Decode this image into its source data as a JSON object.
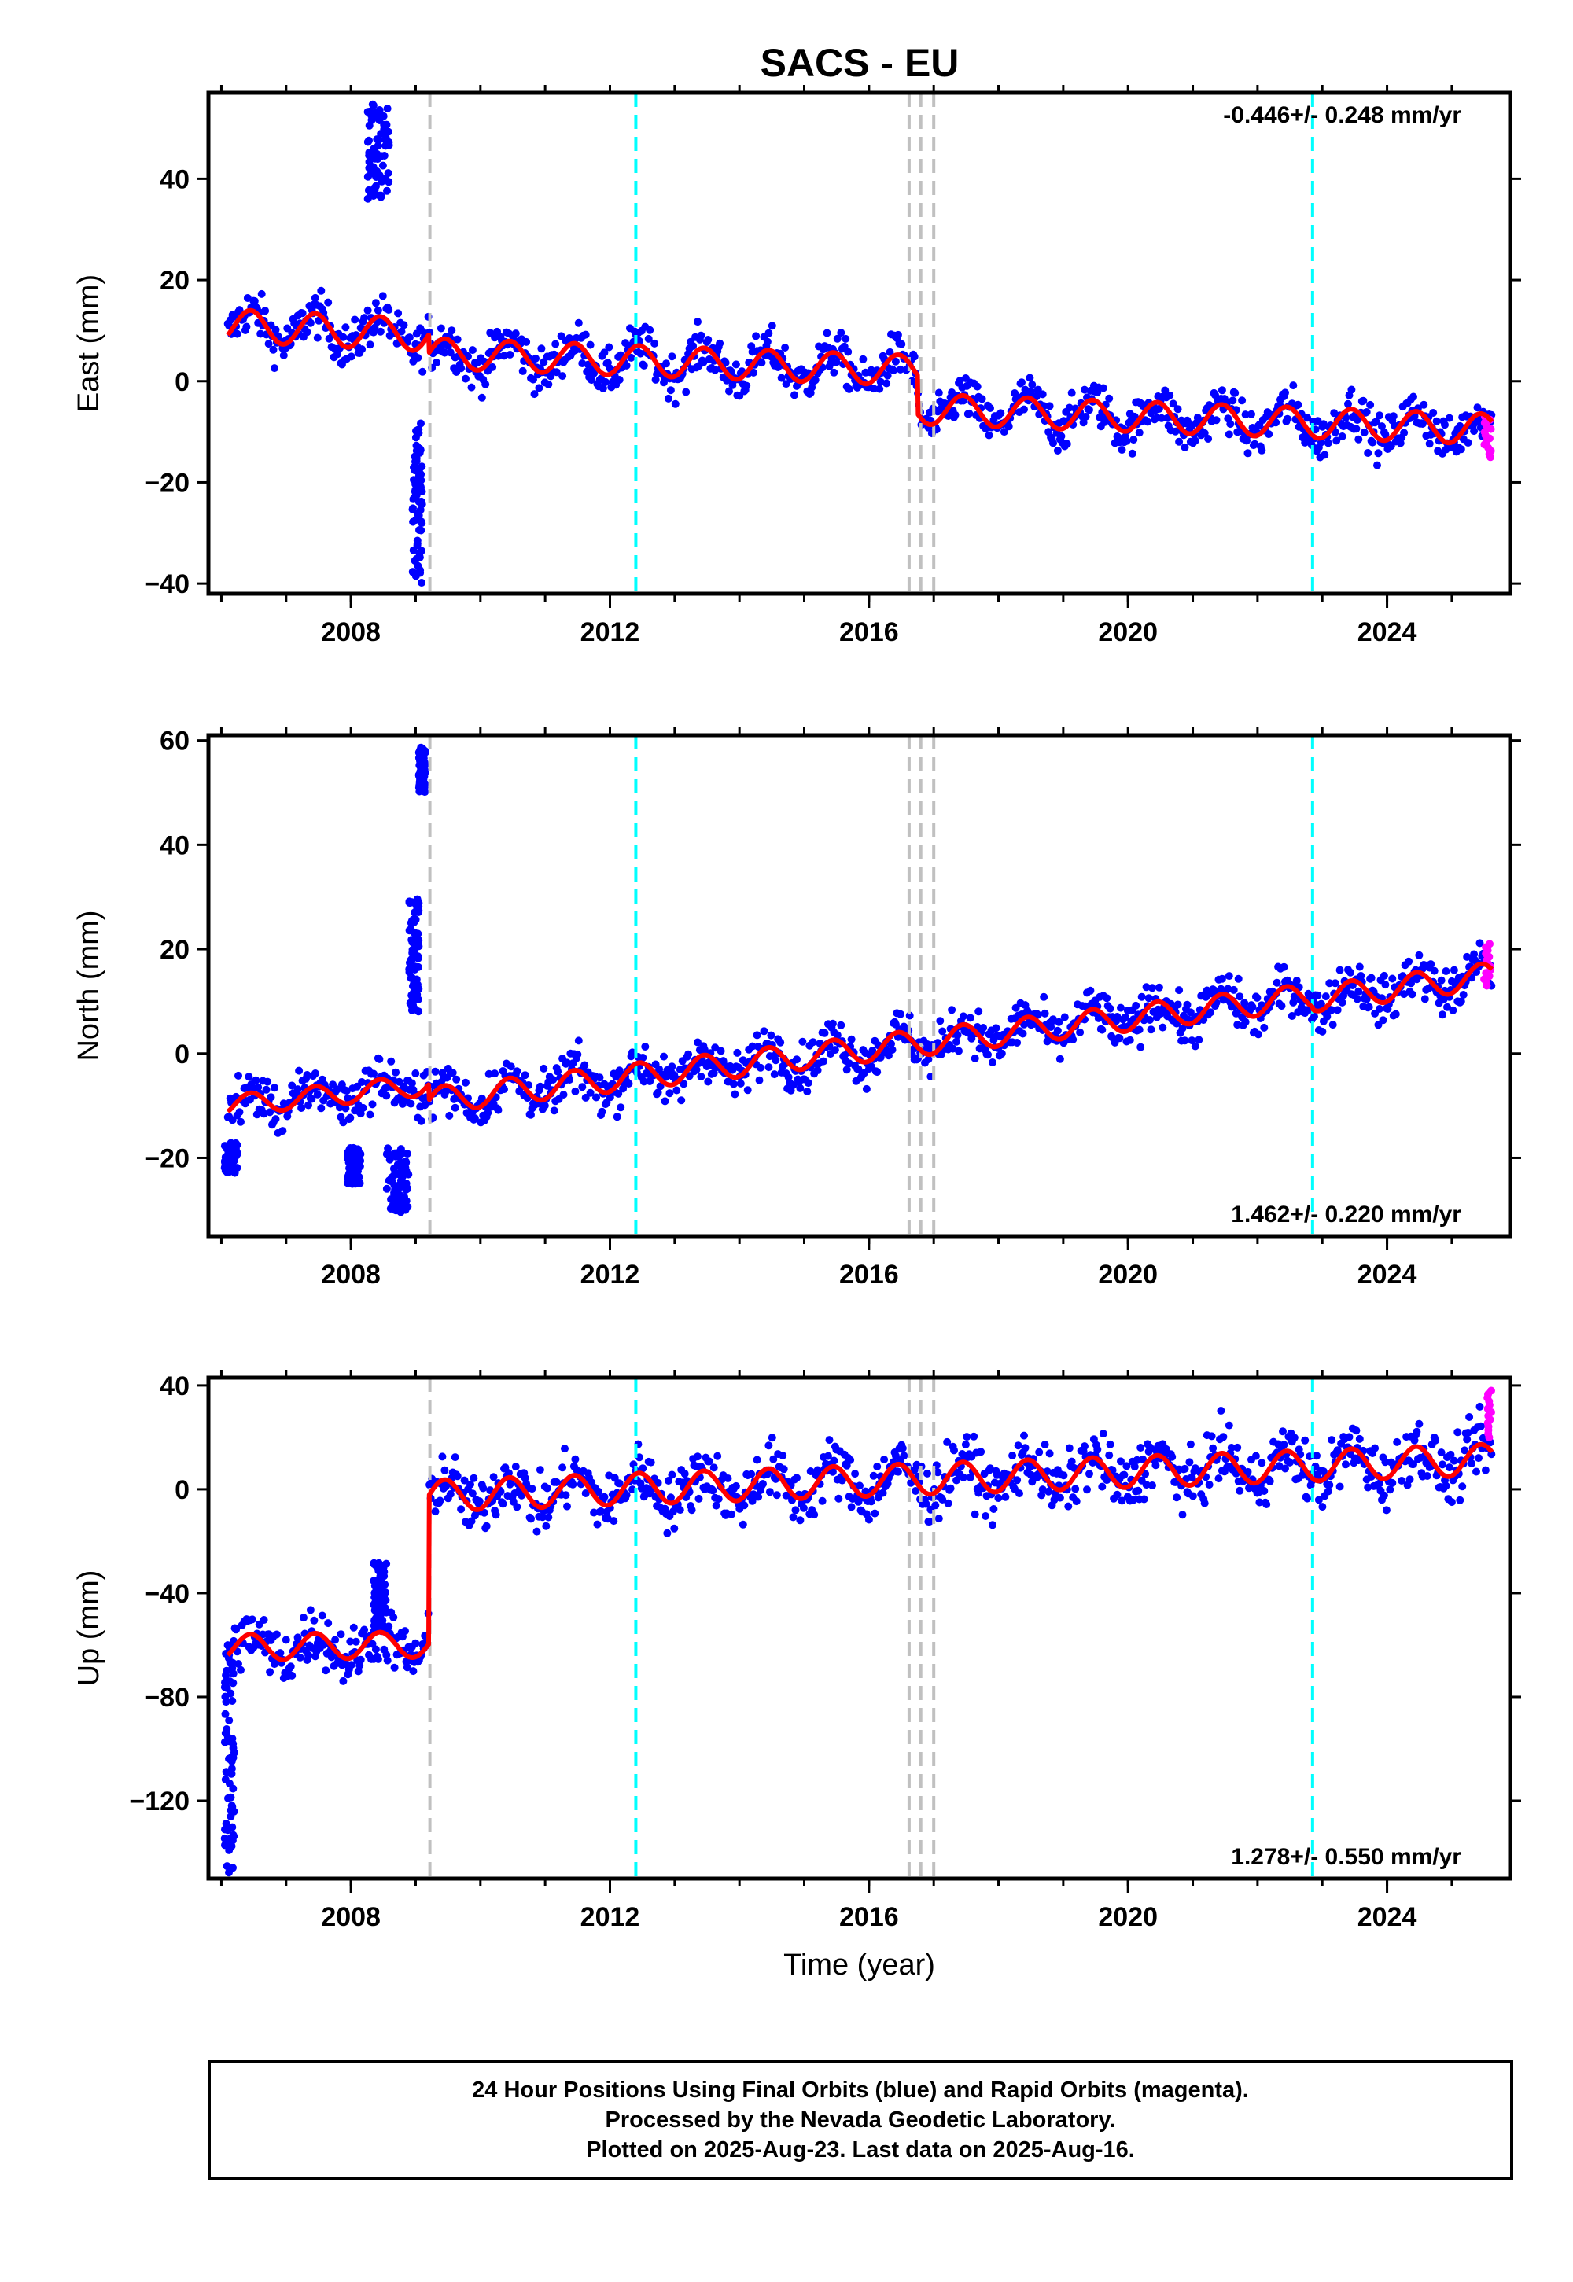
{
  "figure": {
    "title": "SACS - EU"
  },
  "colors": {
    "final_points": "#0000ff",
    "rapid_points": "#ff00ff",
    "model_line": "#ff0000",
    "equipment_change": "#c0c0c0",
    "earthquake": "#00ffff"
  },
  "chart_data": [
    {
      "type": "scatter",
      "panel": "east",
      "title": "SACS - EU",
      "xlabel": "",
      "ylabel": "East (mm)",
      "xlim": [
        2005.8,
        2025.9
      ],
      "ylim": [
        -42,
        57
      ],
      "xticks": [
        2008,
        2012,
        2016,
        2020,
        2024
      ],
      "xtick_labels": [
        "2008",
        "2012",
        "2016",
        "2020",
        "2024"
      ],
      "yticks": [
        -40,
        -20,
        0,
        20,
        40
      ],
      "ytick_labels": [
        "−40",
        "−20",
        "0",
        "20",
        "40"
      ],
      "rate_text": "-0.446+/- 0.248 mm/yr",
      "rate_position": "top-right",
      "rate_mm_per_yr": -0.446,
      "rate_sigma": 0.248,
      "grid": false,
      "series": [
        {
          "name": "Final Orbits",
          "kind": "points",
          "color": "blue"
        },
        {
          "name": "Rapid Orbits",
          "kind": "points",
          "color": "magenta"
        },
        {
          "name": "Model",
          "kind": "line",
          "color": "red"
        }
      ],
      "model_segments": [
        {
          "from": 2006.1,
          "to": 2009.2,
          "offset": 11.0,
          "rate": -0.6,
          "amplitude": 3.2
        },
        {
          "from": 2009.2,
          "to": 2016.75,
          "offset": 5.5,
          "rate": -0.45,
          "amplitude": 3.0
        },
        {
          "from": 2016.75,
          "to": 2025.62,
          "offset": -5.5,
          "rate": -0.45,
          "amplitude": 3.0
        }
      ],
      "outlier_clusters": [
        {
          "x_range": [
            2008.25,
            2008.6
          ],
          "y_range": [
            36,
            55
          ]
        },
        {
          "x_range": [
            2008.95,
            2009.1
          ],
          "y_range": [
            -40,
            -8
          ]
        }
      ],
      "rapid_points": {
        "x_range": [
          2025.5,
          2025.62
        ],
        "y_range": [
          -15,
          -7
        ]
      },
      "vlines_equipment": [
        2009.22,
        2016.62,
        2016.8,
        2017.0
      ],
      "vlines_earthquake": [
        2012.4,
        2022.85
      ]
    },
    {
      "type": "scatter",
      "panel": "north",
      "xlabel": "",
      "ylabel": "North (mm)",
      "xlim": [
        2005.8,
        2025.9
      ],
      "ylim": [
        -35,
        61
      ],
      "xticks": [
        2008,
        2012,
        2016,
        2020,
        2024
      ],
      "xtick_labels": [
        "2008",
        "2012",
        "2016",
        "2020",
        "2024"
      ],
      "yticks": [
        -20,
        0,
        20,
        40,
        60
      ],
      "ytick_labels": [
        "−20",
        "0",
        "20",
        "40",
        "60"
      ],
      "rate_text": "1.462+/- 0.220 mm/yr",
      "rate_position": "bottom-right",
      "rate_mm_per_yr": 1.462,
      "rate_sigma": 0.22,
      "grid": false,
      "series": [
        {
          "name": "Final Orbits",
          "kind": "points",
          "color": "blue"
        },
        {
          "name": "Rapid Orbits",
          "kind": "points",
          "color": "magenta"
        },
        {
          "name": "Model",
          "kind": "line",
          "color": "red"
        }
      ],
      "model_segments": [
        {
          "from": 2006.1,
          "to": 2009.2,
          "offset": -10.0,
          "rate": 1.3,
          "amplitude": 2.0
        },
        {
          "from": 2009.2,
          "to": 2022.85,
          "offset": -9.0,
          "rate": 1.46,
          "amplitude": 2.5
        },
        {
          "from": 2022.85,
          "to": 2025.62,
          "offset": 10.5,
          "rate": 1.6,
          "amplitude": 2.5
        }
      ],
      "outlier_clusters": [
        {
          "x_range": [
            2006.05,
            2006.25
          ],
          "y_range": [
            -23,
            -17
          ]
        },
        {
          "x_range": [
            2007.95,
            2008.15
          ],
          "y_range": [
            -25,
            -18
          ]
        },
        {
          "x_range": [
            2008.55,
            2008.9
          ],
          "y_range": [
            -31,
            -18
          ]
        },
        {
          "x_range": [
            2008.9,
            2009.05
          ],
          "y_range": [
            8,
            31
          ]
        },
        {
          "x_range": [
            2009.05,
            2009.15
          ],
          "y_range": [
            50,
            59
          ]
        }
      ],
      "rapid_points": {
        "x_range": [
          2025.5,
          2025.62
        ],
        "y_range": [
          13,
          21
        ]
      },
      "vlines_equipment": [
        2009.22,
        2016.62,
        2016.8,
        2017.0
      ],
      "vlines_earthquake": [
        2012.4,
        2022.85
      ]
    },
    {
      "type": "scatter",
      "panel": "up",
      "xlabel": "Time (year)",
      "ylabel": "Up (mm)",
      "xlim": [
        2005.8,
        2025.9
      ],
      "ylim": [
        -150,
        43
      ],
      "xticks": [
        2008,
        2012,
        2016,
        2020,
        2024
      ],
      "xtick_labels": [
        "2008",
        "2012",
        "2016",
        "2020",
        "2024"
      ],
      "yticks": [
        -120,
        -80,
        -40,
        0,
        40
      ],
      "ytick_labels": [
        "−120",
        "−80",
        "−40",
        "0",
        "40"
      ],
      "rate_text": "1.278+/- 0.550 mm/yr",
      "rate_position": "bottom-right",
      "rate_mm_per_yr": 1.278,
      "rate_sigma": 0.55,
      "grid": false,
      "series": [
        {
          "name": "Final Orbits",
          "kind": "points",
          "color": "blue"
        },
        {
          "name": "Rapid Orbits",
          "kind": "points",
          "color": "magenta"
        },
        {
          "name": "Model",
          "kind": "line",
          "color": "red"
        }
      ],
      "model_segments": [
        {
          "from": 2006.1,
          "to": 2009.2,
          "offset": -61.0,
          "rate": 0.4,
          "amplitude": 5.0
        },
        {
          "from": 2009.2,
          "to": 2025.62,
          "offset": -2.5,
          "rate": 0.85,
          "amplitude": 6.0
        }
      ],
      "outlier_clusters": [
        {
          "x_range": [
            2006.05,
            2006.2
          ],
          "y_range": [
            -148,
            -60
          ]
        },
        {
          "x_range": [
            2008.35,
            2008.55
          ],
          "y_range": [
            -55,
            -28
          ]
        }
      ],
      "rapid_points": {
        "x_range": [
          2025.55,
          2025.62
        ],
        "y_range": [
          20,
          38
        ]
      },
      "vlines_equipment": [
        2009.22,
        2016.62,
        2016.8,
        2017.0
      ],
      "vlines_earthquake": [
        2012.4,
        2022.85
      ]
    }
  ],
  "footer": {
    "line1": "24 Hour Positions Using Final Orbits (blue) and Rapid Orbits (magenta).",
    "line2": "Processed by the Nevada Geodetic Laboratory.",
    "line3": "Plotted on 2025-Aug-23. Last data on 2025-Aug-16."
  }
}
